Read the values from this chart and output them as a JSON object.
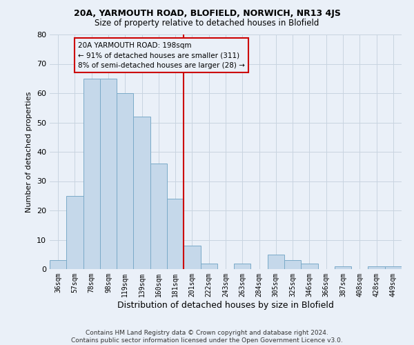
{
  "title1": "20A, YARMOUTH ROAD, BLOFIELD, NORWICH, NR13 4JS",
  "title2": "Size of property relative to detached houses in Blofield",
  "xlabel": "Distribution of detached houses by size in Blofield",
  "ylabel": "Number of detached properties",
  "bin_labels": [
    "36sqm",
    "57sqm",
    "78sqm",
    "98sqm",
    "119sqm",
    "139sqm",
    "160sqm",
    "181sqm",
    "201sqm",
    "222sqm",
    "243sqm",
    "263sqm",
    "284sqm",
    "305sqm",
    "325sqm",
    "346sqm",
    "366sqm",
    "387sqm",
    "408sqm",
    "428sqm",
    "449sqm"
  ],
  "bar_values": [
    3,
    25,
    65,
    65,
    60,
    52,
    36,
    24,
    8,
    2,
    0,
    2,
    0,
    5,
    3,
    2,
    0,
    1,
    0,
    1,
    1
  ],
  "bar_color": "#c5d8ea",
  "bar_edge_color": "#7aaac8",
  "grid_color": "#c8d4e0",
  "bg_color": "#eaf0f8",
  "vline_color": "#cc0000",
  "annotation_text": "20A YARMOUTH ROAD: 198sqm\n← 91% of detached houses are smaller (311)\n8% of semi-detached houses are larger (28) →",
  "annotation_box_color": "#cc0000",
  "ylim": [
    0,
    80
  ],
  "yticks": [
    0,
    10,
    20,
    30,
    40,
    50,
    60,
    70,
    80
  ],
  "footer1": "Contains HM Land Registry data © Crown copyright and database right 2024.",
  "footer2": "Contains public sector information licensed under the Open Government Licence v3.0."
}
